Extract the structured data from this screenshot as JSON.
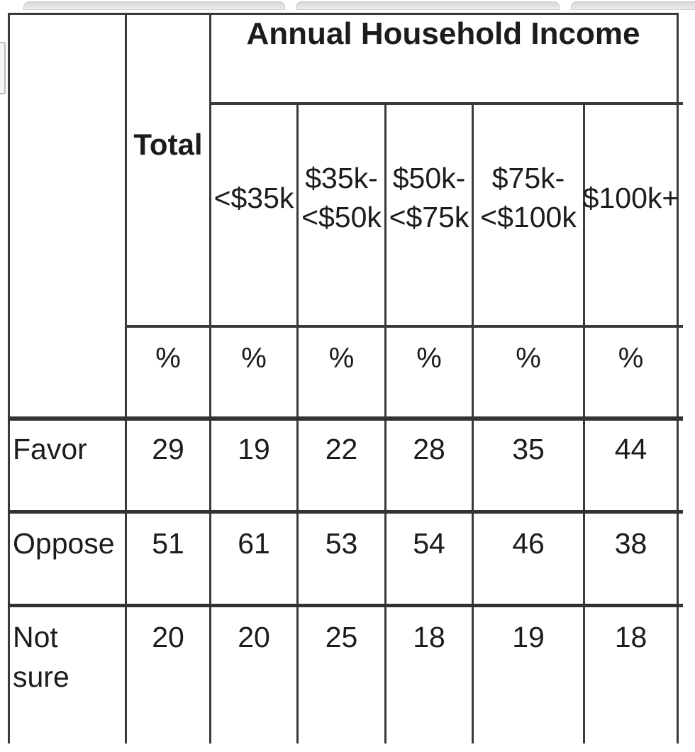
{
  "top_tabs": {
    "visible_count": 3,
    "note_labels": [
      "",
      "",
      ""
    ]
  },
  "table": {
    "span_header": "Annual Household Income",
    "total_label": "Total",
    "percent_symbol": "%",
    "income_columns": [
      {
        "line1": "<$35k",
        "line2": ""
      },
      {
        "line1": "$35k-",
        "line2": "<$50k"
      },
      {
        "line1": "$50k-",
        "line2": "<$75k"
      },
      {
        "line1": "$75k-",
        "line2": "<$100k"
      },
      {
        "line1": "$100k+",
        "line2": ""
      }
    ],
    "rows": [
      {
        "label": "Favor",
        "values": [
          29,
          19,
          22,
          28,
          35,
          44
        ]
      },
      {
        "label": "Oppose",
        "values": [
          51,
          61,
          53,
          54,
          46,
          38
        ]
      },
      {
        "label": "Not sure",
        "values": [
          20,
          20,
          25,
          18,
          19,
          18
        ]
      }
    ]
  },
  "chart_data": {
    "type": "table",
    "title": "Annual Household Income",
    "unit": "%",
    "columns": [
      "Total",
      "<$35k",
      "$35k-<$50k",
      "$50k-<$75k",
      "$75k-<$100k",
      "$100k+"
    ],
    "rows": [
      {
        "label": "Favor",
        "values": [
          29,
          19,
          22,
          28,
          35,
          44
        ]
      },
      {
        "label": "Oppose",
        "values": [
          51,
          61,
          53,
          54,
          46,
          38
        ]
      },
      {
        "label": "Not sure",
        "values": [
          20,
          20,
          25,
          18,
          19,
          18
        ]
      }
    ]
  },
  "colors": {
    "border": "#3a3a3a",
    "text": "#1c1c1c",
    "tab_fill": "#e4e4e4",
    "background": "#ffffff"
  }
}
